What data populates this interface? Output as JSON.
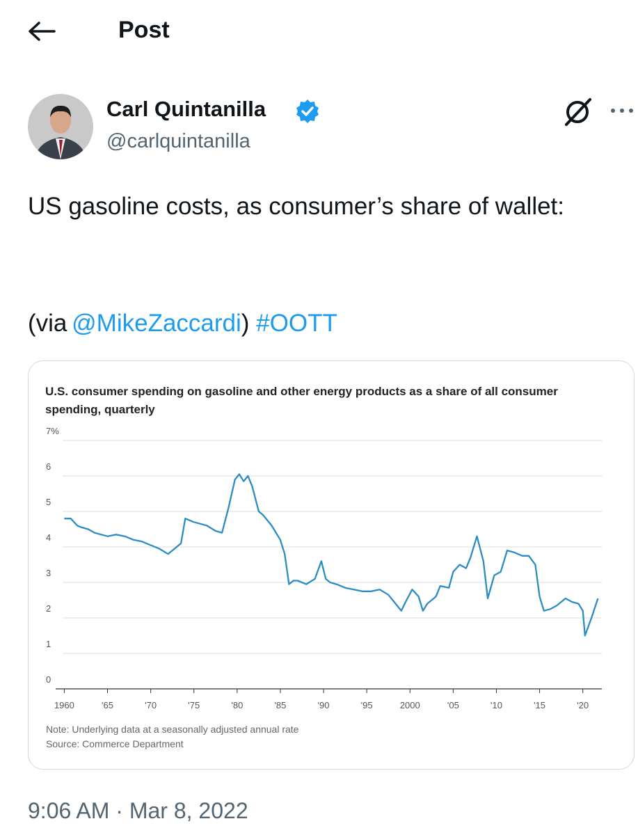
{
  "header": {
    "title": "Post"
  },
  "author": {
    "name": "Carl Quintanilla",
    "handle": "@carlquintanilla"
  },
  "tweet": {
    "text": "US gasoline costs, as consumer’s share of wallet:",
    "via": "(via",
    "mention": "@MikeZaccardi",
    "close": ")",
    "hashtag": "#OOTT"
  },
  "chart_data": {
    "type": "line",
    "title": "U.S. consumer spending on gasoline and other energy products as a share of all consumer spending, quarterly",
    "x": [
      1960,
      1960.75,
      1961.5,
      1962,
      1962.75,
      1963.5,
      1964.25,
      1965,
      1966,
      1967,
      1968,
      1969,
      1970,
      1971,
      1972,
      1972.75,
      1973.5,
      1974,
      1974.5,
      1975,
      1975.75,
      1976.5,
      1977.5,
      1978.25,
      1979,
      1979.75,
      1980.25,
      1980.75,
      1981.25,
      1981.75,
      1982.5,
      1983,
      1984,
      1985,
      1985.5,
      1986,
      1986.5,
      1987,
      1988,
      1989,
      1989.75,
      1990.25,
      1990.75,
      1991.5,
      1992.5,
      1993.5,
      1994.5,
      1995.5,
      1996.5,
      1997.5,
      1998.5,
      1999,
      1999.5,
      2000.25,
      2001,
      2001.5,
      2002,
      2003,
      2003.5,
      2004.5,
      2005,
      2005.75,
      2006.5,
      2007,
      2007.75,
      2008.5,
      2009,
      2009.75,
      2010.5,
      2011.25,
      2012,
      2013,
      2013.75,
      2014.5,
      2015,
      2015.5,
      2016.25,
      2017,
      2018,
      2018.75,
      2019.5,
      2020,
      2020.25,
      2021,
      2021.75
    ],
    "values": [
      4.8,
      4.8,
      4.6,
      4.55,
      4.5,
      4.4,
      4.35,
      4.3,
      4.35,
      4.3,
      4.2,
      4.15,
      4.05,
      3.95,
      3.8,
      3.95,
      4.1,
      4.8,
      4.75,
      4.7,
      4.65,
      4.6,
      4.45,
      4.4,
      5.1,
      5.9,
      6.05,
      5.85,
      6.0,
      5.7,
      5.0,
      4.9,
      4.6,
      4.2,
      3.8,
      2.95,
      3.05,
      3.05,
      2.95,
      3.1,
      3.6,
      3.1,
      3.0,
      2.95,
      2.85,
      2.8,
      2.75,
      2.75,
      2.8,
      2.65,
      2.35,
      2.2,
      2.45,
      2.8,
      2.6,
      2.2,
      2.4,
      2.6,
      2.9,
      2.85,
      3.3,
      3.5,
      3.4,
      3.7,
      4.3,
      3.6,
      2.55,
      3.2,
      3.3,
      3.9,
      3.85,
      3.75,
      3.75,
      3.5,
      2.6,
      2.2,
      2.25,
      2.35,
      2.55,
      2.45,
      2.4,
      2.2,
      1.5,
      2.0,
      2.55
    ],
    "color": "#2b8cc4",
    "xlim": [
      1959,
      2022.2
    ],
    "ylim": [
      0,
      7
    ],
    "xticks": [
      1960,
      {
        "value": 1965,
        "label": "'65"
      },
      {
        "value": 1970,
        "label": "'70"
      },
      {
        "value": 1975,
        "label": "'75"
      },
      {
        "value": 1980,
        "label": "'80"
      },
      {
        "value": 1985,
        "label": "'85"
      },
      {
        "value": 1990,
        "label": "'90"
      },
      {
        "value": 1995,
        "label": "'95"
      },
      2000,
      {
        "value": 2005,
        "label": "'05"
      },
      {
        "value": 2010,
        "label": "'10"
      },
      {
        "value": 2015,
        "label": "'15"
      },
      {
        "value": 2020,
        "label": "'20"
      }
    ],
    "yticks": [
      0,
      1,
      2,
      3,
      4,
      5,
      6,
      {
        "value": 7,
        "label": "7%"
      }
    ],
    "grid": true,
    "note": "Note: Underlying data at a seasonally adjusted annual rate",
    "source": "Source: Commerce Department"
  },
  "timestamp": "9:06 AM · Mar 8, 2022"
}
